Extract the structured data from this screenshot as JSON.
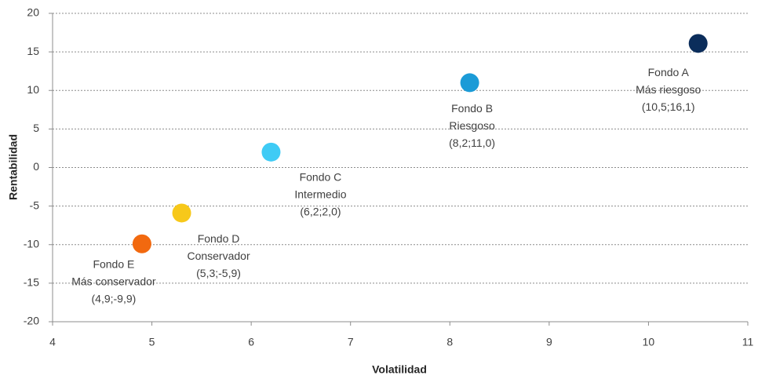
{
  "chart_data": {
    "type": "scatter",
    "x_label": "Volatilidad",
    "y_label": "Rentabilidad",
    "xlim": [
      4,
      11
    ],
    "xticks": [
      4,
      5,
      6,
      7,
      8,
      9,
      10,
      11
    ],
    "ylim": [
      -20,
      20
    ],
    "yticks": [
      -20,
      -15,
      -10,
      -5,
      0,
      5,
      10,
      15,
      20
    ],
    "grid": true,
    "points": [
      {
        "name": "Fondo A",
        "description": "Más riesgoso",
        "x": 10.5,
        "y": 16.1,
        "color": "#0b2d5b",
        "value_label": "(10,5;16,1)"
      },
      {
        "name": "Fondo B",
        "description": "Riesgoso",
        "x": 8.2,
        "y": 11.0,
        "color": "#1b9bd7",
        "value_label": "(8,2;11,0)"
      },
      {
        "name": "Fondo C",
        "description": "Intermedio",
        "x": 6.2,
        "y": 2.0,
        "color": "#3fcbf5",
        "value_label": "(6,2;2,0)"
      },
      {
        "name": "Fondo D",
        "description": "Conservador",
        "x": 5.3,
        "y": -5.9,
        "color": "#f7c81a",
        "value_label": "(5,3;-5,9)"
      },
      {
        "name": "Fondo E",
        "description": "Más conservador",
        "x": 4.9,
        "y": -9.9,
        "color": "#f2690f",
        "value_label": "(4,9;-9,9)"
      }
    ]
  }
}
